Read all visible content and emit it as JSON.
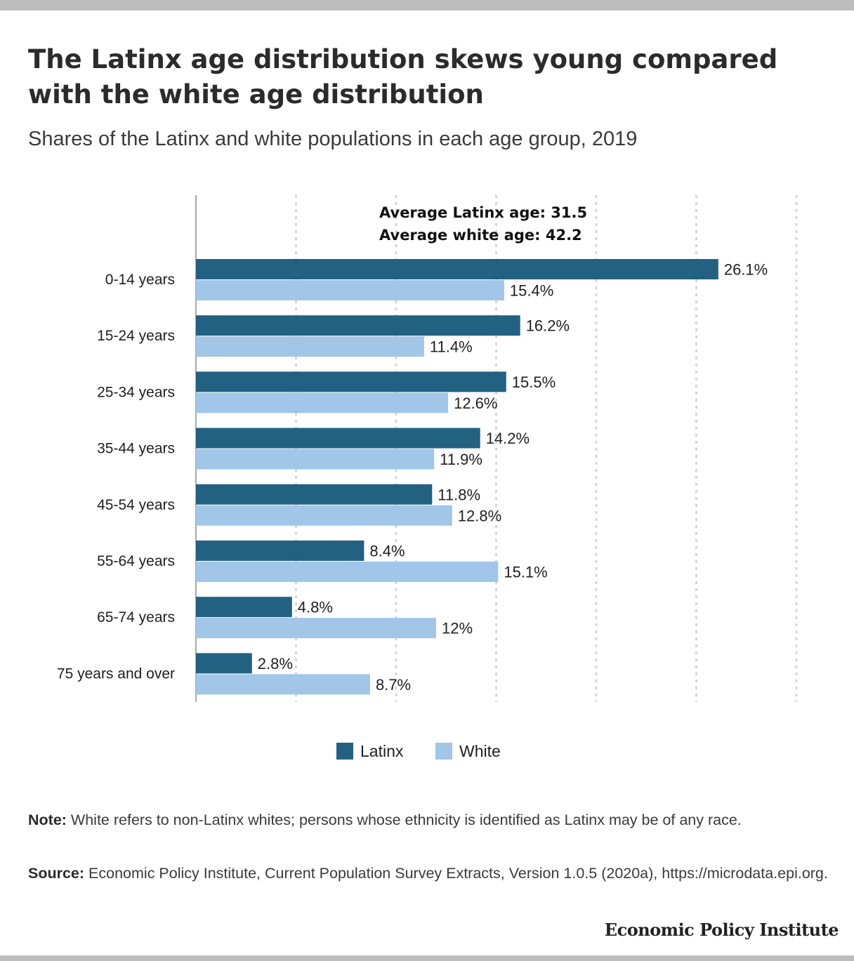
{
  "header": {
    "title": "The Latinx age distribution skews young compared with the white age distribution",
    "subtitle": "Shares of the Latinx and white populations in each age group, 2019"
  },
  "chart_data": {
    "type": "bar",
    "orientation": "horizontal",
    "categories": [
      "0-14 years",
      "15-24 years",
      "25-34 years",
      "35-44 years",
      "45-54 years",
      "55-64 years",
      "65-74 years",
      "75 years and over"
    ],
    "series": [
      {
        "name": "Latinx",
        "color": "#236182",
        "values": [
          26.1,
          16.2,
          15.5,
          14.2,
          11.8,
          8.4,
          4.8,
          2.8
        ],
        "labels": [
          "26.1%",
          "16.2%",
          "15.5%",
          "14.2%",
          "11.8%",
          "8.4%",
          "4.8%",
          "2.8%"
        ]
      },
      {
        "name": "White",
        "color": "#a1c6e8",
        "values": [
          15.4,
          11.4,
          12.6,
          11.9,
          12.8,
          15.1,
          12.0,
          8.7
        ],
        "labels": [
          "15.4%",
          "11.4%",
          "12.6%",
          "11.9%",
          "12.8%",
          "15.1%",
          "12%",
          "8.7%"
        ]
      }
    ],
    "xlim": [
      0,
      30
    ],
    "gridlines": [
      5,
      10,
      15,
      20,
      25,
      30
    ],
    "grid": true,
    "legend": "bottom-center",
    "annotations": [
      "Average Latinx age: 31.5",
      "Average white age: 42.2"
    ]
  },
  "footer": {
    "note_label": "Note:",
    "note_text": "White refers to non-Latinx whites; persons whose ethnicity is identified as Latinx may be of any race.",
    "source_label": "Source:",
    "source_text": "Economic Policy Institute, Current Population Survey Extracts, Version 1.0.5 (2020a), https://microdata.epi.org.",
    "brand": "Economic Policy Institute"
  }
}
